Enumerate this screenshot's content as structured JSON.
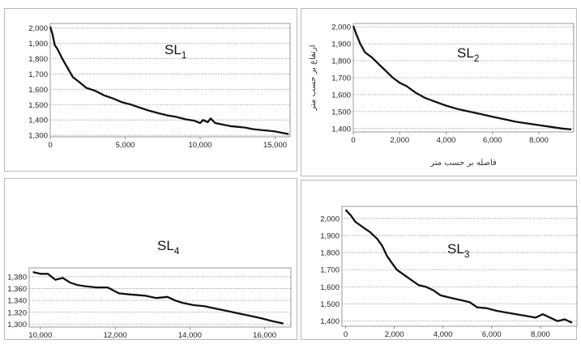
{
  "chart_data": [
    {
      "id": "sl1",
      "type": "line",
      "title": "SL",
      "title_sub": "1",
      "xlabel": "",
      "ylabel": "",
      "xlim": [
        0,
        16000
      ],
      "ylim": [
        1290,
        2030
      ],
      "xticks": [
        0,
        5000,
        10000,
        15000
      ],
      "xtick_labels": [
        "0",
        "5,000",
        "10,000",
        "15,000"
      ],
      "yticks": [
        1300,
        1400,
        1500,
        1600,
        1700,
        1800,
        1900,
        2000
      ],
      "ytick_labels": [
        "1,300",
        "1,400",
        "1,500",
        "1,600",
        "1,700",
        "1,800",
        "1,900",
        "2,000"
      ],
      "grid": "horizontal dotted",
      "series": [
        {
          "x": [
            0,
            150,
            300,
            500,
            800,
            1100,
            1500,
            1900,
            2400,
            3000,
            3600,
            4200,
            4800,
            5400,
            6000,
            6600,
            7200,
            7800,
            8400,
            9000,
            9600,
            10000,
            10200,
            10500,
            10700,
            11000,
            11500,
            12000,
            12500,
            13000,
            13500,
            14000,
            14500,
            15000,
            15500,
            15900
          ],
          "y": [
            2010,
            1960,
            1890,
            1860,
            1800,
            1750,
            1680,
            1650,
            1610,
            1590,
            1560,
            1540,
            1515,
            1500,
            1480,
            1460,
            1445,
            1430,
            1420,
            1405,
            1395,
            1380,
            1400,
            1385,
            1410,
            1380,
            1370,
            1360,
            1355,
            1350,
            1340,
            1335,
            1330,
            1325,
            1315,
            1308
          ]
        }
      ]
    },
    {
      "id": "sl2",
      "type": "line",
      "title": "SL",
      "title_sub": "2",
      "xlabel": "فاصله بر حسب متر",
      "ylabel": "ارتفاع بر حسب متر",
      "xlim": [
        0,
        9500
      ],
      "ylim": [
        1380,
        2020
      ],
      "xticks": [
        0,
        2000,
        4000,
        6000,
        8000
      ],
      "xtick_labels": [
        "0",
        "2,000",
        "4,000",
        "6,000",
        "8,000"
      ],
      "yticks": [
        1400,
        1500,
        1600,
        1700,
        1800,
        1900,
        2000
      ],
      "ytick_labels": [
        "1,400",
        "1,500",
        "1,600",
        "1,700",
        "1,800",
        "1,900",
        "2,000"
      ],
      "grid": "horizontal dotted",
      "series": [
        {
          "x": [
            0,
            150,
            300,
            500,
            800,
            1100,
            1400,
            1700,
            2000,
            2300,
            2700,
            3100,
            3500,
            4000,
            4500,
            5000,
            5500,
            6000,
            6500,
            7000,
            7500,
            8000,
            8500,
            9000,
            9400
          ],
          "y": [
            2005,
            1950,
            1900,
            1850,
            1820,
            1780,
            1740,
            1700,
            1670,
            1650,
            1610,
            1580,
            1560,
            1535,
            1515,
            1500,
            1485,
            1470,
            1455,
            1440,
            1430,
            1420,
            1410,
            1400,
            1395
          ]
        }
      ]
    },
    {
      "id": "sl4",
      "type": "line",
      "title": "SL",
      "title_sub": "4",
      "xlabel": "",
      "ylabel": "",
      "xlim": [
        9700,
        16700
      ],
      "ylim": [
        1295,
        1395
      ],
      "xticks": [
        10000,
        12000,
        14000,
        16000
      ],
      "xtick_labels": [
        "10,000",
        "12,000",
        "14,000",
        "16,000"
      ],
      "yticks": [
        1300,
        1320,
        1340,
        1360,
        1380
      ],
      "ytick_labels": [
        "1,300",
        "1,320",
        "1,340",
        "1,360",
        "1,380"
      ],
      "grid": "horizontal dotted",
      "series": [
        {
          "x": [
            9800,
            10000,
            10200,
            10400,
            10600,
            10800,
            11000,
            11200,
            11500,
            11800,
            12100,
            12400,
            12800,
            13100,
            13400,
            13600,
            13800,
            14100,
            14400,
            14700,
            15000,
            15300,
            15600,
            15900,
            16200,
            16500
          ],
          "y": [
            1388,
            1385,
            1385,
            1375,
            1378,
            1370,
            1366,
            1364,
            1362,
            1362,
            1352,
            1350,
            1348,
            1344,
            1346,
            1340,
            1336,
            1332,
            1330,
            1326,
            1322,
            1318,
            1314,
            1310,
            1305,
            1301
          ]
        }
      ]
    },
    {
      "id": "sl3",
      "type": "line",
      "title": "SL",
      "title_sub": "3",
      "xlabel": "",
      "ylabel": "",
      "xlim": [
        -150,
        9500
      ],
      "ylim": [
        1370,
        2070
      ],
      "xticks": [
        0,
        2000,
        4000,
        6000,
        8000
      ],
      "xtick_labels": [
        "0",
        "2,000",
        "4,000",
        "6,000",
        "8,000"
      ],
      "yticks": [
        1400,
        1500,
        1600,
        1700,
        1800,
        1900,
        2000
      ],
      "ytick_labels": [
        "1,400",
        "1,500",
        "1,600",
        "1,700",
        "1,800",
        "1,900",
        "2,000"
      ],
      "grid": "horizontal dotted",
      "series": [
        {
          "x": [
            0,
            200,
            400,
            700,
            1000,
            1300,
            1500,
            1700,
            1900,
            2100,
            2400,
            2700,
            3000,
            3300,
            3600,
            3900,
            4200,
            4500,
            4800,
            5100,
            5400,
            5800,
            6200,
            6600,
            7000,
            7400,
            7800,
            8100,
            8400,
            8700,
            9000,
            9300
          ],
          "y": [
            2050,
            2020,
            1980,
            1950,
            1920,
            1880,
            1840,
            1780,
            1740,
            1700,
            1670,
            1640,
            1610,
            1600,
            1580,
            1550,
            1540,
            1530,
            1520,
            1510,
            1480,
            1475,
            1460,
            1450,
            1440,
            1430,
            1420,
            1440,
            1420,
            1400,
            1410,
            1390
          ]
        }
      ]
    }
  ]
}
